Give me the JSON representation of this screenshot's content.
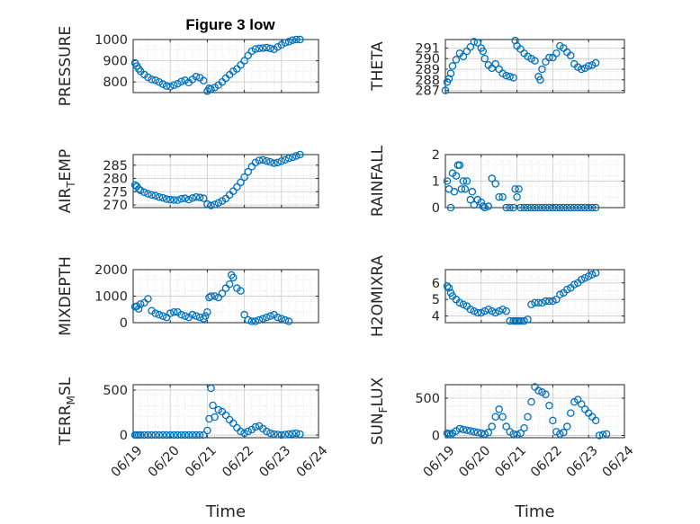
{
  "figure": {
    "title": "Figure 3 low"
  },
  "chart_data": [
    {
      "type": "scatter",
      "name": "PRESSURE",
      "ylabel": "PRESSURE",
      "xlabel": "",
      "xlim": [
        0,
        5
      ],
      "ylim": [
        750,
        1000
      ],
      "yticks": [
        800,
        900,
        1000
      ],
      "xticks": [],
      "xticklabels": [],
      "grid": true,
      "x": [
        0.05,
        0.1,
        0.15,
        0.2,
        0.3,
        0.4,
        0.5,
        0.6,
        0.7,
        0.8,
        0.9,
        1.0,
        1.1,
        1.2,
        1.3,
        1.4,
        1.5,
        1.6,
        1.7,
        1.8,
        1.9,
        2.0,
        2.05,
        2.1,
        2.2,
        2.3,
        2.4,
        2.5,
        2.6,
        2.7,
        2.8,
        2.9,
        3.0,
        3.1,
        3.2,
        3.3,
        3.4,
        3.5,
        3.6,
        3.7,
        3.8,
        3.9,
        4.0,
        4.1,
        4.2,
        4.3,
        4.4,
        4.5
      ],
      "y": [
        890,
        875,
        862,
        850,
        835,
        822,
        812,
        808,
        800,
        790,
        781,
        778,
        785,
        792,
        802,
        808,
        797,
        812,
        825,
        820,
        806,
        757,
        770,
        766,
        774,
        785,
        800,
        818,
        834,
        850,
        862,
        880,
        900,
        925,
        945,
        955,
        958,
        960,
        962,
        958,
        954,
        965,
        975,
        985,
        990,
        997,
        1000,
        1000
      ]
    },
    {
      "type": "scatter",
      "name": "THETA",
      "ylabel": "THETA",
      "xlabel": "",
      "xlim": [
        0,
        5
      ],
      "ylim": [
        286.8,
        291.8
      ],
      "yticks": [
        287,
        288,
        289,
        290,
        291
      ],
      "xticks": [],
      "xticklabels": [],
      "grid": true,
      "x": [
        0.0,
        0.05,
        0.1,
        0.15,
        0.2,
        0.3,
        0.4,
        0.5,
        0.6,
        0.7,
        0.8,
        0.9,
        1.0,
        1.05,
        1.1,
        1.2,
        1.3,
        1.4,
        1.5,
        1.6,
        1.7,
        1.8,
        1.9,
        1.95,
        2.0,
        2.1,
        2.2,
        2.3,
        2.4,
        2.5,
        2.6,
        2.65,
        2.7,
        2.8,
        2.9,
        3.0,
        3.1,
        3.2,
        3.3,
        3.4,
        3.5,
        3.6,
        3.7,
        3.8,
        3.9,
        4.0,
        4.1,
        4.2
      ],
      "y": [
        287.0,
        287.8,
        288.1,
        288.6,
        289.3,
        289.9,
        290.5,
        290.2,
        290.7,
        291.1,
        291.6,
        291.5,
        291.0,
        290.7,
        290.0,
        289.4,
        289.1,
        289.5,
        289.0,
        288.6,
        288.4,
        288.3,
        288.2,
        291.7,
        291.2,
        290.9,
        290.5,
        290.2,
        290.0,
        289.8,
        288.3,
        288.0,
        289.0,
        289.7,
        290.1,
        290.1,
        290.5,
        291.2,
        291.0,
        290.6,
        290.3,
        289.5,
        289.2,
        289.0,
        289.1,
        289.3,
        289.4,
        289.6
      ]
    },
    {
      "type": "scatter",
      "name": "AIR_TEMP",
      "ylabel": "AIR_TEMP",
      "xlabel": "",
      "xlim": [
        0,
        5
      ],
      "ylim": [
        269,
        289
      ],
      "yticks": [
        270,
        275,
        280,
        285
      ],
      "xticks": [],
      "xticklabels": [],
      "grid": true,
      "x": [
        0.05,
        0.1,
        0.15,
        0.2,
        0.3,
        0.4,
        0.5,
        0.6,
        0.7,
        0.8,
        0.9,
        1.0,
        1.1,
        1.2,
        1.3,
        1.4,
        1.5,
        1.6,
        1.7,
        1.8,
        1.9,
        2.0,
        2.1,
        2.2,
        2.3,
        2.4,
        2.5,
        2.6,
        2.7,
        2.8,
        2.9,
        3.0,
        3.1,
        3.2,
        3.3,
        3.4,
        3.5,
        3.6,
        3.7,
        3.8,
        3.9,
        4.0,
        4.1,
        4.2,
        4.3,
        4.4,
        4.5
      ],
      "y": [
        277.5,
        277.0,
        276.0,
        275.5,
        274.8,
        274.2,
        273.8,
        273.5,
        273.0,
        272.7,
        272.2,
        272.0,
        271.9,
        271.8,
        272.3,
        272.5,
        272.0,
        272.6,
        273.0,
        272.8,
        272.5,
        270.3,
        269.8,
        270.2,
        270.8,
        271.5,
        272.4,
        273.8,
        275.2,
        276.8,
        278.5,
        280.5,
        282.5,
        284.5,
        286.0,
        286.8,
        287.0,
        286.6,
        286.2,
        285.8,
        286.0,
        286.5,
        287.0,
        287.6,
        288.0,
        288.5,
        289.0
      ]
    },
    {
      "type": "scatter",
      "name": "RAINFALL",
      "ylabel": "RAINFALL",
      "xlabel": "",
      "xlim": [
        0,
        5
      ],
      "ylim": [
        0,
        2
      ],
      "yticks": [
        0,
        1,
        2
      ],
      "xticks": [],
      "xticklabels": [],
      "grid": true,
      "x": [
        0.05,
        0.1,
        0.15,
        0.2,
        0.25,
        0.3,
        0.35,
        0.4,
        0.45,
        0.5,
        0.55,
        0.6,
        0.7,
        0.75,
        0.8,
        0.9,
        1.0,
        1.05,
        1.1,
        1.2,
        1.3,
        1.4,
        1.5,
        1.6,
        1.7,
        1.8,
        1.9,
        1.95,
        2.0,
        2.05,
        2.1,
        2.2,
        2.3,
        2.4,
        2.5,
        2.6,
        2.7,
        2.8,
        2.9,
        3.0,
        3.1,
        3.2,
        3.3,
        3.4,
        3.5,
        3.6,
        3.7,
        3.8,
        3.9,
        4.0,
        4.1,
        4.2
      ],
      "y": [
        1.0,
        0.7,
        0.0,
        1.3,
        0.6,
        1.2,
        1.6,
        1.6,
        0.7,
        1.0,
        0.7,
        1.0,
        0.3,
        0.6,
        0.1,
        0.3,
        0.2,
        0.05,
        0.0,
        0.05,
        1.1,
        0.9,
        0.4,
        0.4,
        0.0,
        0.0,
        0.0,
        0.7,
        0.4,
        0.7,
        0.0,
        0.0,
        0.0,
        0.0,
        0.0,
        0.0,
        0.0,
        0.0,
        0.0,
        0.0,
        0.0,
        0.0,
        0.0,
        0.0,
        0.0,
        0.0,
        0.0,
        0.0,
        0.0,
        0.0,
        0.0,
        0.0
      ]
    },
    {
      "type": "scatter",
      "name": "MIXDEPTH",
      "ylabel": "MIXDEPTH",
      "xlabel": "",
      "xlim": [
        0,
        5
      ],
      "ylim": [
        0,
        2000
      ],
      "yticks": [
        0,
        1000,
        2000
      ],
      "xticks": [],
      "xticklabels": [],
      "grid": true,
      "x": [
        0.05,
        0.1,
        0.15,
        0.2,
        0.3,
        0.4,
        0.5,
        0.6,
        0.7,
        0.8,
        0.9,
        1.0,
        1.1,
        1.2,
        1.3,
        1.4,
        1.5,
        1.6,
        1.7,
        1.8,
        1.9,
        1.95,
        2.0,
        2.05,
        2.1,
        2.2,
        2.3,
        2.4,
        2.5,
        2.6,
        2.65,
        2.7,
        2.8,
        2.9,
        3.0,
        3.1,
        3.2,
        3.3,
        3.4,
        3.5,
        3.6,
        3.7,
        3.8,
        3.9,
        4.0,
        4.1,
        4.2
      ],
      "y": [
        600,
        620,
        520,
        700,
        750,
        900,
        450,
        350,
        300,
        250,
        200,
        350,
        400,
        400,
        300,
        250,
        200,
        300,
        250,
        200,
        150,
        250,
        400,
        950,
        1000,
        1000,
        950,
        1100,
        1300,
        1450,
        1800,
        1700,
        1300,
        1200,
        300,
        100,
        50,
        50,
        100,
        150,
        200,
        250,
        300,
        200,
        150,
        100,
        50
      ]
    },
    {
      "type": "scatter",
      "name": "H2OMIXRA",
      "ylabel": "H2OMIXRA",
      "xlabel": "",
      "xlim": [
        0,
        5
      ],
      "ylim": [
        3.6,
        6.8
      ],
      "yticks": [
        4,
        5,
        6
      ],
      "xticks": [],
      "xticklabels": [],
      "grid": true,
      "x": [
        0.05,
        0.1,
        0.15,
        0.2,
        0.3,
        0.4,
        0.5,
        0.6,
        0.7,
        0.8,
        0.9,
        1.0,
        1.1,
        1.2,
        1.3,
        1.4,
        1.5,
        1.6,
        1.7,
        1.8,
        1.9,
        1.95,
        2.0,
        2.05,
        2.1,
        2.2,
        2.3,
        2.4,
        2.5,
        2.6,
        2.7,
        2.8,
        2.9,
        3.0,
        3.1,
        3.2,
        3.3,
        3.4,
        3.5,
        3.6,
        3.7,
        3.8,
        3.9,
        4.0,
        4.1,
        4.2
      ],
      "y": [
        5.8,
        5.7,
        5.4,
        5.2,
        5.0,
        4.8,
        4.7,
        4.6,
        4.4,
        4.3,
        4.2,
        4.2,
        4.3,
        4.4,
        4.3,
        4.2,
        4.3,
        4.4,
        4.3,
        3.7,
        3.7,
        3.7,
        3.7,
        3.7,
        3.7,
        3.7,
        3.8,
        4.7,
        4.8,
        4.8,
        4.8,
        4.9,
        4.9,
        4.9,
        5.0,
        5.3,
        5.4,
        5.6,
        5.7,
        5.9,
        6.0,
        6.2,
        6.3,
        6.4,
        6.5,
        6.6
      ]
    },
    {
      "type": "scatter",
      "name": "TERR_MSL",
      "ylabel": "TERR_MSL",
      "xlabel": "Time",
      "xlim": [
        0,
        5
      ],
      "ylim": [
        -30,
        560
      ],
      "yticks": [
        0,
        500
      ],
      "xticks": [
        0,
        1,
        2,
        3,
        4,
        5
      ],
      "xticklabels": [
        "06/19",
        "06/20",
        "06/21",
        "06/22",
        "06/23",
        "06/24"
      ],
      "grid": true,
      "x": [
        0.05,
        0.1,
        0.15,
        0.2,
        0.3,
        0.4,
        0.5,
        0.6,
        0.7,
        0.8,
        0.9,
        1.0,
        1.1,
        1.2,
        1.3,
        1.4,
        1.5,
        1.6,
        1.7,
        1.8,
        1.9,
        2.0,
        2.05,
        2.1,
        2.15,
        2.2,
        2.3,
        2.4,
        2.5,
        2.6,
        2.7,
        2.8,
        2.9,
        3.0,
        3.1,
        3.2,
        3.3,
        3.4,
        3.5,
        3.6,
        3.7,
        3.8,
        3.9,
        4.0,
        4.1,
        4.2,
        4.3,
        4.4,
        4.5
      ],
      "y": [
        0,
        0,
        0,
        0,
        0,
        0,
        0,
        0,
        0,
        0,
        0,
        0,
        0,
        0,
        0,
        0,
        0,
        0,
        0,
        0,
        0,
        50,
        180,
        520,
        330,
        200,
        280,
        260,
        220,
        170,
        130,
        80,
        40,
        20,
        40,
        60,
        90,
        100,
        70,
        40,
        20,
        10,
        5,
        0,
        5,
        10,
        15,
        20,
        10
      ]
    },
    {
      "type": "scatter",
      "name": "SUN_FLUX",
      "ylabel": "SUN_FLUX",
      "xlabel": "Time",
      "xlim": [
        0,
        5
      ],
      "ylim": [
        -30,
        680
      ],
      "yticks": [
        0,
        500
      ],
      "xticks": [
        0,
        1,
        2,
        3,
        4,
        5
      ],
      "xticklabels": [
        "06/19",
        "06/20",
        "06/21",
        "06/22",
        "06/23",
        "06/24"
      ],
      "grid": true,
      "x": [
        0.05,
        0.1,
        0.15,
        0.2,
        0.3,
        0.4,
        0.5,
        0.6,
        0.7,
        0.8,
        0.9,
        1.0,
        1.1,
        1.2,
        1.3,
        1.4,
        1.5,
        1.6,
        1.7,
        1.8,
        1.9,
        2.0,
        2.1,
        2.2,
        2.3,
        2.4,
        2.5,
        2.6,
        2.7,
        2.8,
        2.9,
        3.0,
        3.1,
        3.2,
        3.3,
        3.4,
        3.5,
        3.6,
        3.7,
        3.8,
        3.9,
        4.0,
        4.1,
        4.2,
        4.3,
        4.4,
        4.5
      ],
      "y": [
        30,
        20,
        10,
        30,
        60,
        90,
        80,
        70,
        60,
        50,
        40,
        30,
        20,
        40,
        120,
        250,
        350,
        250,
        120,
        50,
        20,
        10,
        30,
        100,
        250,
        450,
        650,
        600,
        580,
        550,
        400,
        200,
        50,
        20,
        40,
        120,
        300,
        450,
        480,
        420,
        350,
        300,
        250,
        200,
        0,
        10,
        20
      ]
    }
  ],
  "theme": {
    "marker": "#0072BD",
    "axis": "#262626",
    "grid": "#dfdfdf",
    "text": "#262626"
  }
}
